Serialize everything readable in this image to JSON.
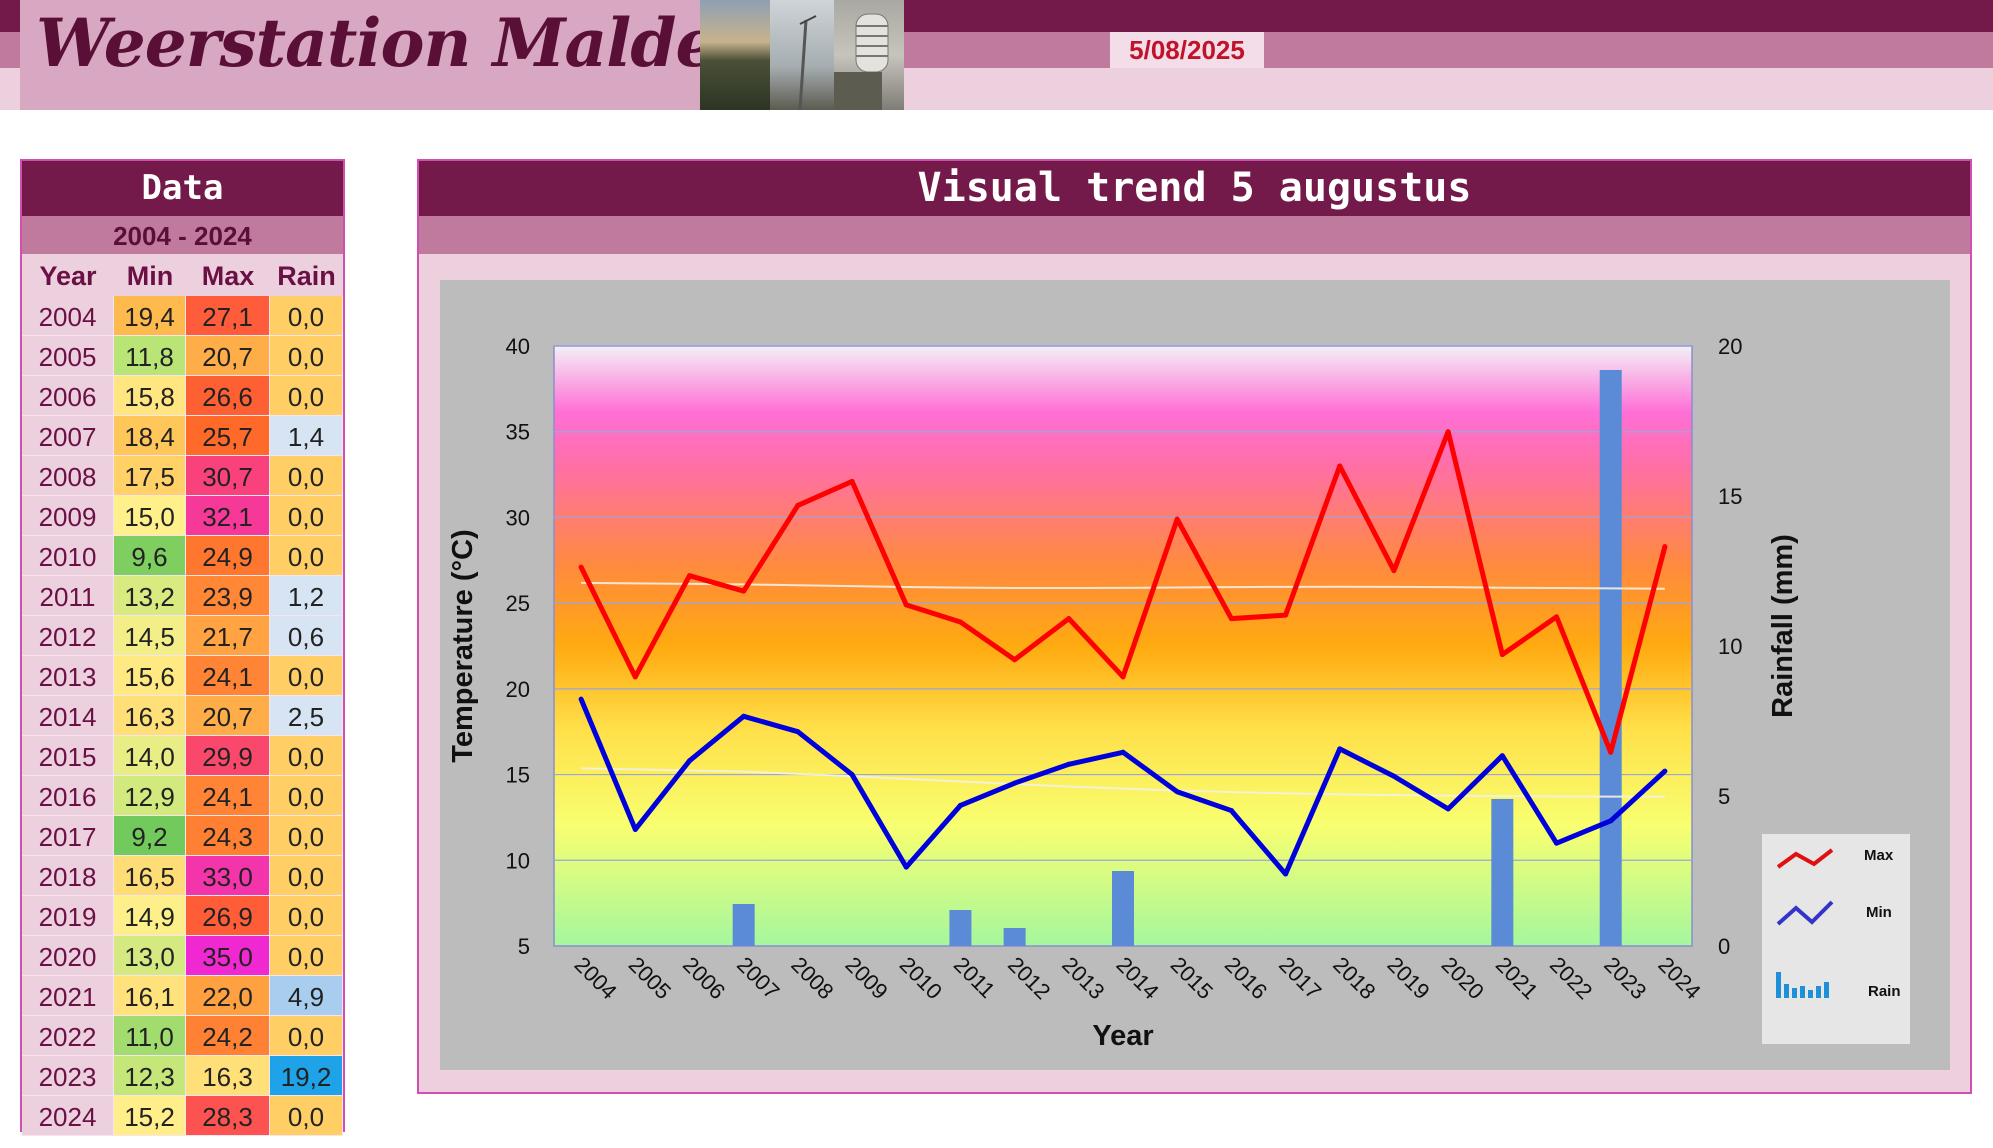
{
  "header": {
    "title": "Weerstation Malderen",
    "date": "5/08/2025"
  },
  "table": {
    "title": "Data",
    "period": "2004 - 2024",
    "columns": [
      "Year",
      "Min",
      "Max",
      "Rain"
    ],
    "rows": [
      {
        "year": "2004",
        "min": "19,4",
        "max": "27,1",
        "rain": "0,0"
      },
      {
        "year": "2005",
        "min": "11,8",
        "max": "20,7",
        "rain": "0,0"
      },
      {
        "year": "2006",
        "min": "15,8",
        "max": "26,6",
        "rain": "0,0"
      },
      {
        "year": "2007",
        "min": "18,4",
        "max": "25,7",
        "rain": "1,4"
      },
      {
        "year": "2008",
        "min": "17,5",
        "max": "30,7",
        "rain": "0,0"
      },
      {
        "year": "2009",
        "min": "15,0",
        "max": "32,1",
        "rain": "0,0"
      },
      {
        "year": "2010",
        "min": "9,6",
        "max": "24,9",
        "rain": "0,0"
      },
      {
        "year": "2011",
        "min": "13,2",
        "max": "23,9",
        "rain": "1,2"
      },
      {
        "year": "2012",
        "min": "14,5",
        "max": "21,7",
        "rain": "0,6"
      },
      {
        "year": "2013",
        "min": "15,6",
        "max": "24,1",
        "rain": "0,0"
      },
      {
        "year": "2014",
        "min": "16,3",
        "max": "20,7",
        "rain": "2,5"
      },
      {
        "year": "2015",
        "min": "14,0",
        "max": "29,9",
        "rain": "0,0"
      },
      {
        "year": "2016",
        "min": "12,9",
        "max": "24,1",
        "rain": "0,0"
      },
      {
        "year": "2017",
        "min": "9,2",
        "max": "24,3",
        "rain": "0,0"
      },
      {
        "year": "2018",
        "min": "16,5",
        "max": "33,0",
        "rain": "0,0"
      },
      {
        "year": "2019",
        "min": "14,9",
        "max": "26,9",
        "rain": "0,0"
      },
      {
        "year": "2020",
        "min": "13,0",
        "max": "35,0",
        "rain": "0,0"
      },
      {
        "year": "2021",
        "min": "16,1",
        "max": "22,0",
        "rain": "4,9"
      },
      {
        "year": "2022",
        "min": "11,0",
        "max": "24,2",
        "rain": "0,0"
      },
      {
        "year": "2023",
        "min": "12,3",
        "max": "16,3",
        "rain": "19,2"
      },
      {
        "year": "2024",
        "min": "15,2",
        "max": "28,3",
        "rain": "0,0"
      }
    ]
  },
  "chart_title": "Visual trend 5 augustus",
  "chart_data": {
    "type": "line",
    "title": "Visual trend 5 augustus",
    "xlabel": "Year",
    "ylabel": "Temperature (°C)",
    "y2label": "Rainfall (mm)",
    "ylim": [
      5,
      40
    ],
    "yticks": [
      5,
      10,
      15,
      20,
      25,
      30,
      35,
      40
    ],
    "y2lim": [
      0,
      20
    ],
    "y2ticks": [
      0,
      5,
      10,
      15,
      20
    ],
    "categories": [
      "2004",
      "2005",
      "2006",
      "2007",
      "2008",
      "2009",
      "2010",
      "2011",
      "2012",
      "2013",
      "2014",
      "2015",
      "2016",
      "2017",
      "2018",
      "2019",
      "2020",
      "2021",
      "2022",
      "2023",
      "2024"
    ],
    "series": [
      {
        "name": "Max",
        "type": "line",
        "axis": "left",
        "color": "#ff0000",
        "values": [
          27.1,
          20.7,
          26.6,
          25.7,
          30.7,
          32.1,
          24.9,
          23.9,
          21.7,
          24.1,
          20.7,
          29.9,
          24.1,
          24.3,
          33.0,
          26.9,
          35.0,
          22.0,
          24.2,
          16.3,
          28.3
        ]
      },
      {
        "name": "Min",
        "type": "line",
        "axis": "left",
        "color": "#0000dd",
        "values": [
          19.4,
          11.8,
          15.8,
          18.4,
          17.5,
          15.0,
          9.6,
          13.2,
          14.5,
          15.6,
          16.3,
          14.0,
          12.9,
          9.2,
          16.5,
          14.9,
          13.0,
          16.1,
          11.0,
          12.3,
          15.2
        ]
      },
      {
        "name": "Rain",
        "type": "bar",
        "axis": "right",
        "color": "#5b8bd6",
        "values": [
          0.0,
          0.0,
          0.0,
          1.4,
          0.0,
          0.0,
          0.0,
          1.2,
          0.6,
          0.0,
          2.5,
          0.0,
          0.0,
          0.0,
          0.0,
          0.0,
          0.0,
          4.9,
          0.0,
          19.2,
          0.0
        ]
      }
    ],
    "legend": {
      "position": "bottom-right",
      "entries": [
        "Max",
        "Min",
        "Rain"
      ]
    },
    "trendlines": true,
    "grid": true
  },
  "colors": {
    "header_dark": "#731a4a",
    "header_mid": "#c07a9e",
    "header_light": "#ecd0de",
    "panel_border": "#d14fb0",
    "date_red": "#c0122a"
  }
}
